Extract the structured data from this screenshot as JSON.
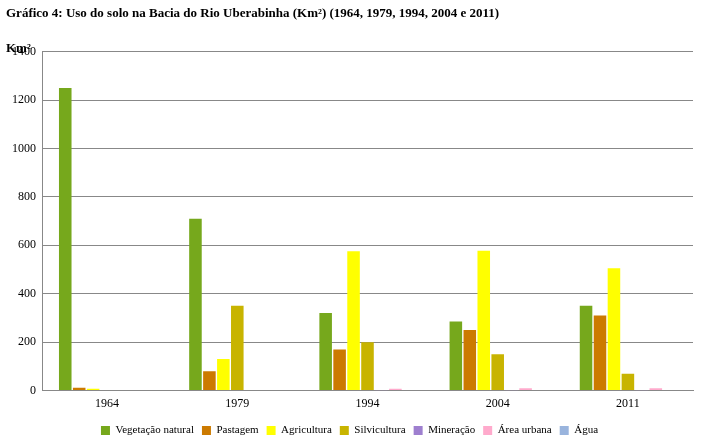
{
  "chart_data": {
    "type": "bar",
    "title": "Gráfico 4: Uso do solo na Bacia do Rio Uberabinha (Km²) (1964, 1979, 1994, 2004 e 2011)",
    "y_label": "Km²",
    "categories": [
      "1964",
      "1979",
      "1994",
      "2004",
      "2011"
    ],
    "series": [
      {
        "name": "Vegetação natural",
        "color": "#76a81c",
        "values": [
          1250,
          710,
          320,
          285,
          350
        ]
      },
      {
        "name": "Pastagem",
        "color": "#cc7a00",
        "values": [
          12,
          80,
          170,
          250,
          310
        ]
      },
      {
        "name": "Agricultura",
        "color": "#ffff00",
        "values": [
          8,
          130,
          575,
          578,
          505
        ]
      },
      {
        "name": "Silvicultura",
        "color": "#c8b400",
        "values": [
          0,
          350,
          200,
          150,
          70
        ]
      },
      {
        "name": "Mineração",
        "color": "#9e7fcf",
        "values": [
          0,
          0,
          1,
          1,
          1
        ]
      },
      {
        "name": "Área urbana",
        "color": "#ffaacc",
        "values": [
          0,
          0,
          8,
          10,
          10
        ]
      },
      {
        "name": "Água",
        "color": "#99b4dd",
        "values": [
          0,
          0,
          0,
          0,
          0
        ]
      }
    ],
    "ylim": [
      0,
      1400
    ],
    "yticks": [
      0,
      200,
      400,
      600,
      800,
      1000,
      1200,
      1400
    ],
    "grid": true,
    "legend": "bottom"
  }
}
